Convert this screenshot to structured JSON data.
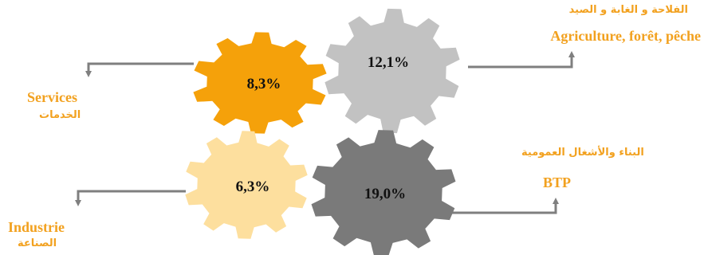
{
  "colors": {
    "agriculture": "#C2C2C2",
    "services": "#F5A10A",
    "industrie": "#FDDF9E",
    "btp": "#7A7A7A",
    "connector": "#7F7F7F",
    "label": "#F2A11F"
  },
  "gears": [
    {
      "id": "agriculture",
      "value": "12,1%"
    },
    {
      "id": "services",
      "value": "8,3%"
    },
    {
      "id": "industrie",
      "value": "6,3%"
    },
    {
      "id": "btp",
      "value": "19,0%"
    }
  ],
  "labels": {
    "agriculture_ar": "الفلاحة و الغابة و الصيد",
    "agriculture_fr": "Agriculture, forêt, pêche",
    "services_fr": "Services",
    "services_ar": "الخدمات",
    "btp_ar": "البناء والأشغال العمومية",
    "btp_fr": "BTP",
    "industrie_fr": "Industrie",
    "industrie_ar": "الصناعة"
  }
}
